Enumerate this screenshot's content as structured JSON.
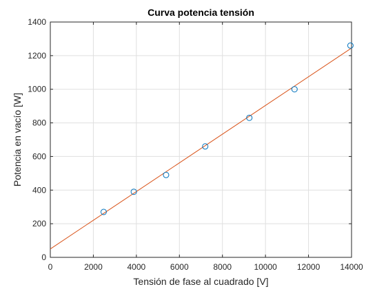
{
  "chart_data": {
    "type": "scatter",
    "title": "Curva potencia tensión",
    "xlabel": "Tensión de fase al cuadrado [V]",
    "ylabel": "Potencia en vacío [W]",
    "xlim": [
      0,
      14000
    ],
    "ylim": [
      0,
      1400
    ],
    "xticks": [
      0,
      2000,
      4000,
      6000,
      8000,
      10000,
      12000,
      14000
    ],
    "yticks": [
      0,
      200,
      400,
      600,
      800,
      1000,
      1200,
      1400
    ],
    "grid": true,
    "series": [
      {
        "kind": "markers",
        "marker": "circle",
        "color": "#0072bd",
        "x": [
          2480,
          3880,
          5380,
          7200,
          9250,
          11350,
          13950
        ],
        "y": [
          270,
          390,
          490,
          660,
          830,
          1000,
          1260
        ]
      },
      {
        "kind": "line",
        "color": "#d95319",
        "x": [
          0,
          14000
        ],
        "y": [
          50,
          1245
        ]
      }
    ]
  }
}
